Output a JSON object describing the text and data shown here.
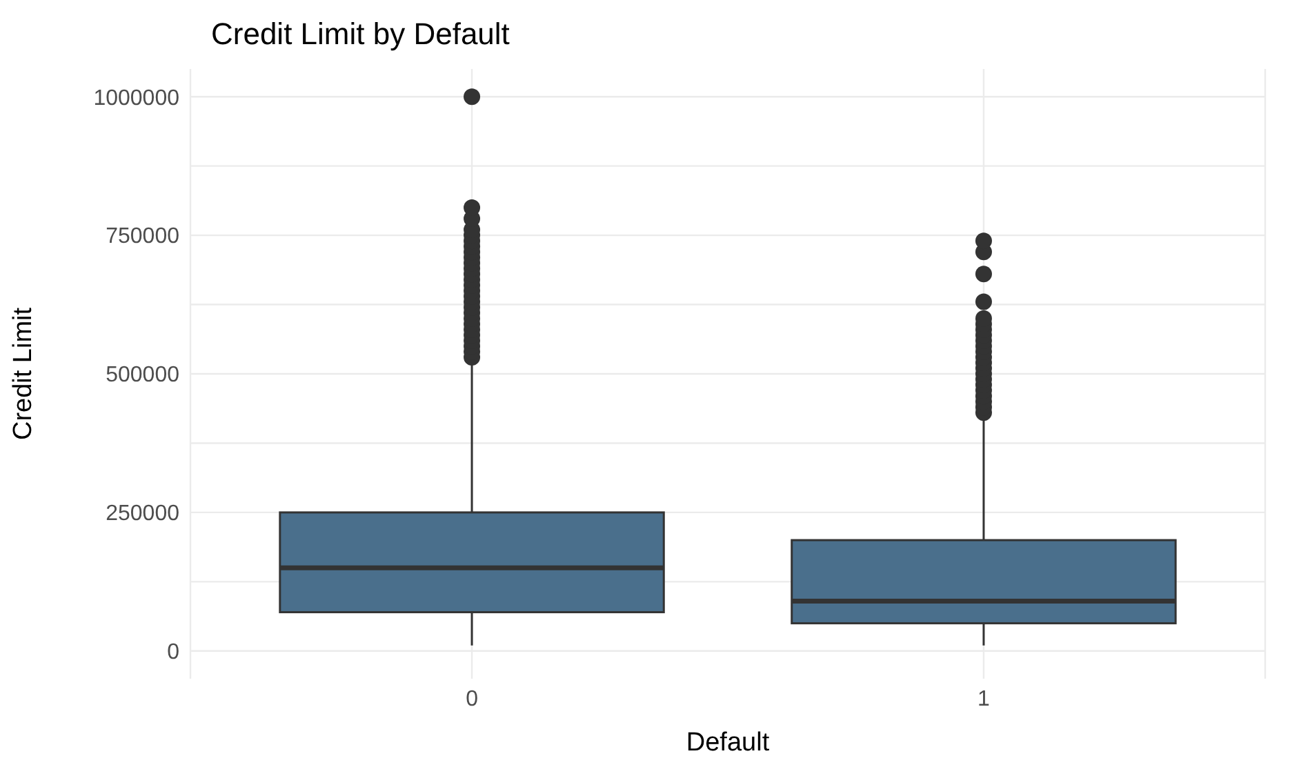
{
  "chart_data": {
    "type": "box",
    "title": "Credit Limit by Default",
    "xlabel": "Default",
    "ylabel": "Credit Limit",
    "categories": [
      "0",
      "1"
    ],
    "ylim": [
      -50000,
      1050000
    ],
    "yticks": [
      0,
      250000,
      500000,
      750000,
      1000000
    ],
    "grid": true,
    "series": [
      {
        "color": "#4a6f8c",
        "boxes": [
          {
            "low": 10000,
            "q1": 70000,
            "median": 150000,
            "q3": 250000,
            "high": 520000,
            "outliers": [
              530000,
              540000,
              550000,
              560000,
              570000,
              580000,
              590000,
              600000,
              610000,
              620000,
              630000,
              640000,
              650000,
              660000,
              670000,
              680000,
              690000,
              700000,
              710000,
              720000,
              730000,
              740000,
              750000,
              760000,
              780000,
              800000,
              1000000
            ]
          },
          {
            "low": 10000,
            "q1": 50000,
            "median": 90000,
            "q3": 200000,
            "high": 420000,
            "outliers": [
              430000,
              440000,
              450000,
              460000,
              470000,
              480000,
              490000,
              500000,
              510000,
              520000,
              530000,
              540000,
              550000,
              560000,
              570000,
              580000,
              590000,
              600000,
              630000,
              680000,
              720000,
              740000
            ]
          }
        ]
      }
    ]
  }
}
